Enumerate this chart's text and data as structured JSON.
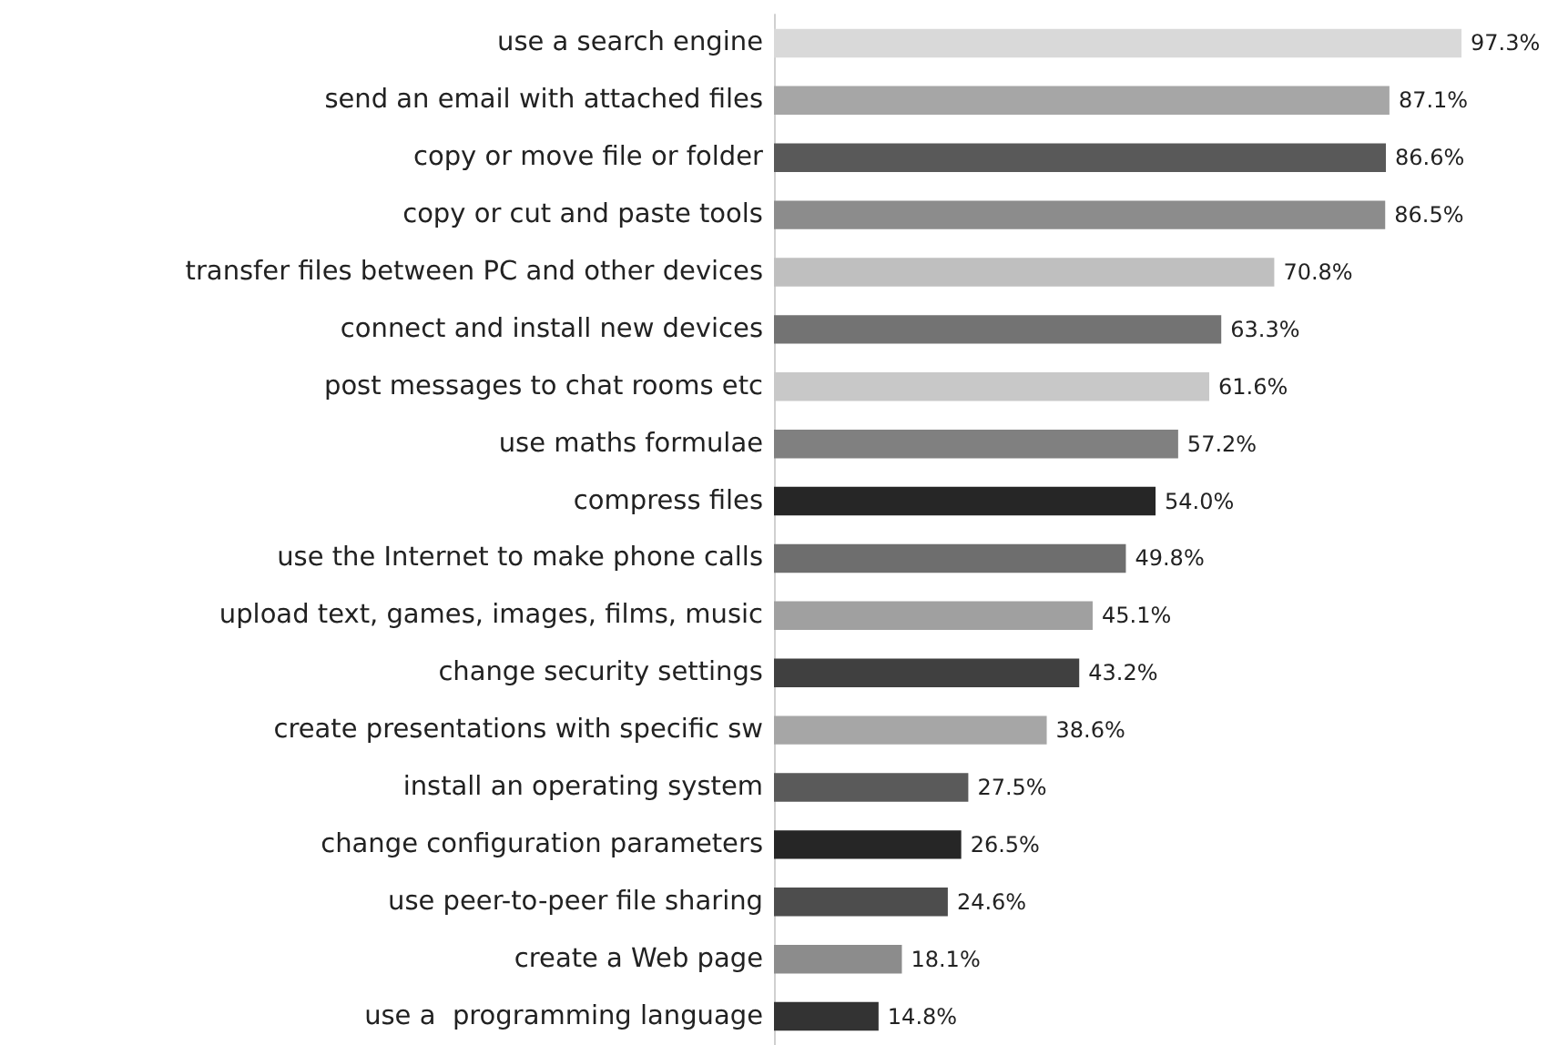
{
  "chart_data": {
    "type": "bar",
    "orientation": "horizontal",
    "tick_labels": "y",
    "categories": [
      "use a search engine",
      "send an email with attached files",
      "copy or move file or folder",
      "copy or cut and paste tools",
      "transfer files between PC and other devices",
      "connect and install new devices",
      "post messages to chat rooms etc",
      "use maths formulae",
      "compress files",
      "use the Internet to make phone calls",
      "upload text, games, images, films, music",
      "change security settings",
      "create presentations with specific sw",
      "install an operating system",
      "change configuration parameters",
      "use peer-to-peer file sharing",
      "create a Web page",
      "use a  programming language"
    ],
    "values": [
      97.3,
      87.1,
      86.6,
      86.5,
      70.8,
      63.3,
      61.6,
      57.2,
      54.0,
      49.8,
      45.1,
      43.2,
      38.6,
      27.5,
      26.5,
      24.6,
      18.1,
      14.8
    ],
    "value_labels": [
      "97.3%",
      "87.1%",
      "86.6%",
      "86.5%",
      "70.8%",
      "63.3%",
      "61.6%",
      "57.2%",
      "54.0%",
      "49.8%",
      "45.1%",
      "43.2%",
      "38.6%",
      "27.5%",
      "26.5%",
      "24.6%",
      "18.1%",
      "14.8%"
    ],
    "colors": [
      "#d9d9d9",
      "#a6a6a6",
      "#595959",
      "#8c8c8c",
      "#bfbfbf",
      "#737373",
      "#c8c8c8",
      "#808080",
      "#262626",
      "#6e6e6e",
      "#a0a0a0",
      "#404040",
      "#a6a6a6",
      "#5a5a5a",
      "#262626",
      "#4d4d4d",
      "#8c8c8c",
      "#333333"
    ]
  }
}
